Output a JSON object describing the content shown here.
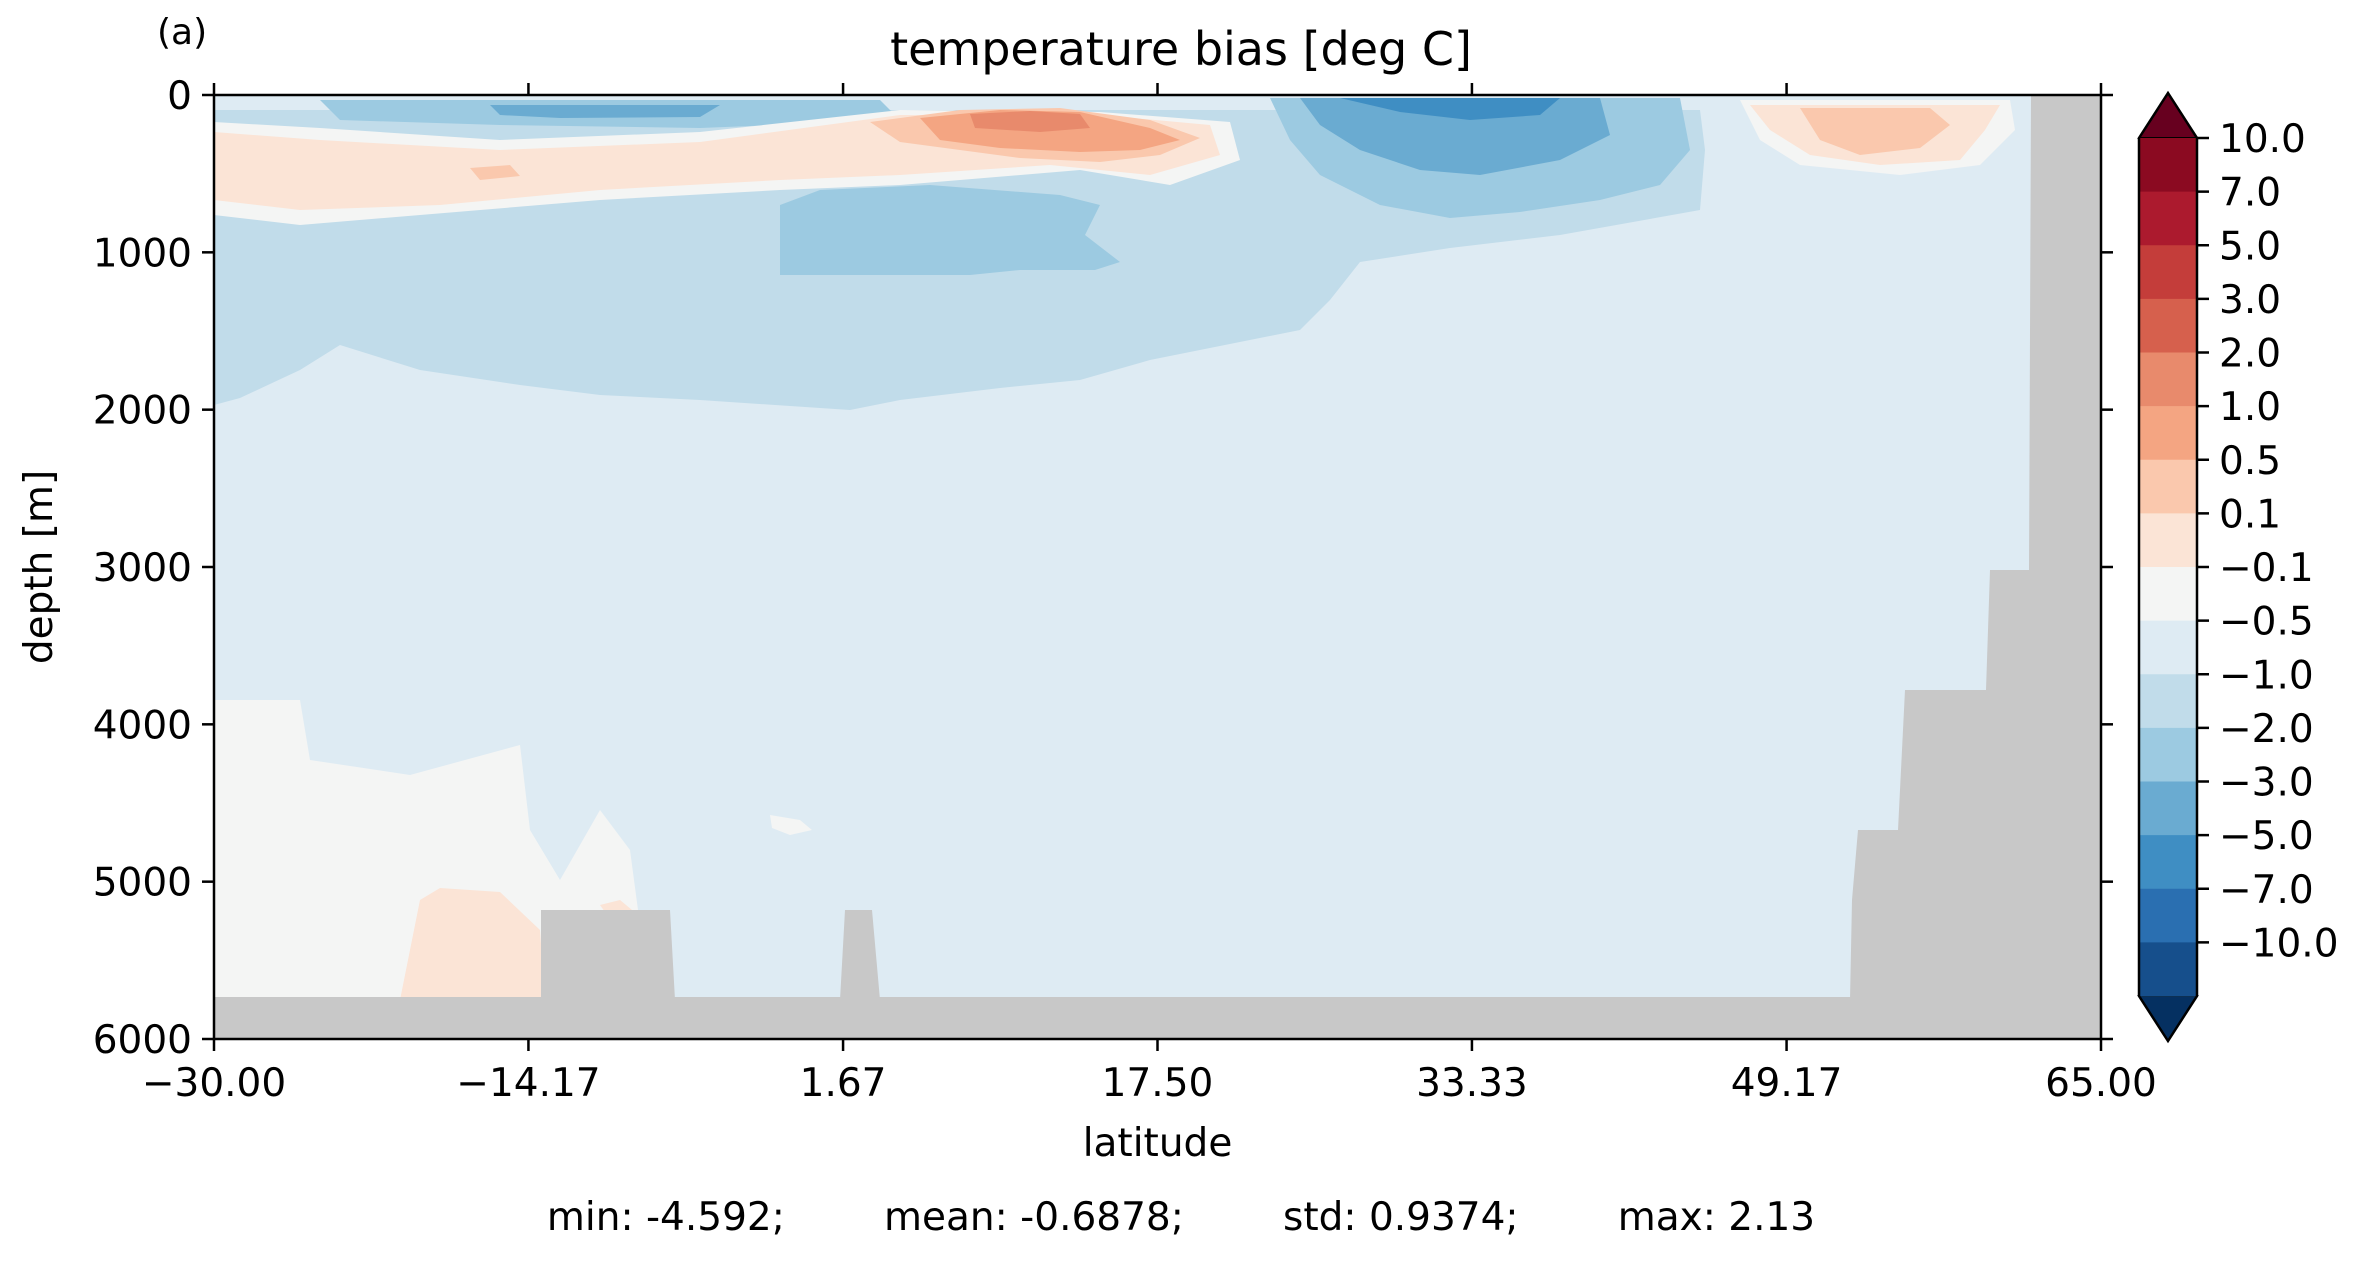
{
  "chart": {
    "panel_label": "(a)",
    "title": "temperature bias [deg C]",
    "xlabel": "latitude",
    "ylabel": "depth [m]",
    "stats": {
      "min": "min: -4.592;",
      "mean": "mean: -0.6878;",
      "std": "std: 0.9374;",
      "max": "max: 2.13"
    }
  },
  "chart_data": {
    "type": "heatmap",
    "title": "temperature bias [deg C]",
    "xlabel": "latitude",
    "ylabel": "depth [m]",
    "xlim": [
      -30,
      65
    ],
    "ylim": [
      6000,
      0
    ],
    "x_ticks": [
      "−30.00",
      "−14.17",
      "1.67",
      "17.50",
      "33.33",
      "49.17",
      "65.00"
    ],
    "x_tick_values": [
      -30.0,
      -14.17,
      1.67,
      17.5,
      33.33,
      49.17,
      65.0
    ],
    "y_ticks": [
      "0",
      "1000",
      "2000",
      "3000",
      "4000",
      "5000",
      "6000"
    ],
    "y_tick_values": [
      0,
      1000,
      2000,
      3000,
      4000,
      5000,
      6000
    ],
    "colorbar": {
      "labels": [
        "10.0",
        "7.0",
        "5.0",
        "3.0",
        "2.0",
        "1.0",
        "0.5",
        "0.1",
        "−0.1",
        "−0.5",
        "−1.0",
        "−2.0",
        "−3.0",
        "−5.0",
        "−7.0",
        "−10.0"
      ],
      "levels": [
        10,
        7,
        5,
        3,
        2,
        1,
        0.5,
        0.1,
        -0.1,
        -0.5,
        -1,
        -2,
        -3,
        -5,
        -7,
        -10
      ],
      "colors": [
        "#8b0a21",
        "#ac1a2e",
        "#c43d3a",
        "#d6604d",
        "#e88a6c",
        "#f4a582",
        "#fac8ad",
        "#fbe4d6",
        "#f4f5f4",
        "#deebf3",
        "#c1dcea",
        "#9ccae1",
        "#6aabd1",
        "#3f8ec3",
        "#2a6fb1",
        "#164f8c"
      ],
      "extend_max_color": "#67001f",
      "extend_min_color": "#053061"
    },
    "land_color": "#c8c8c8",
    "stats": {
      "min": -4.592,
      "mean": -0.6878,
      "std": 0.9374,
      "max": 2.13
    }
  }
}
